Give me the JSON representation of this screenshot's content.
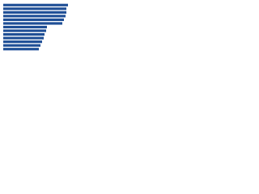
{
  "chart_data": {
    "type": "bar",
    "orientation": "horizontal",
    "categories": [
      null,
      null,
      null,
      null,
      null,
      null,
      null,
      null,
      null,
      null,
      null,
      null,
      null
    ],
    "values": [
      80,
      78,
      78,
      77,
      75,
      73,
      54,
      53,
      51,
      50,
      48,
      46,
      44
    ],
    "color": "#1f4f96"
  }
}
